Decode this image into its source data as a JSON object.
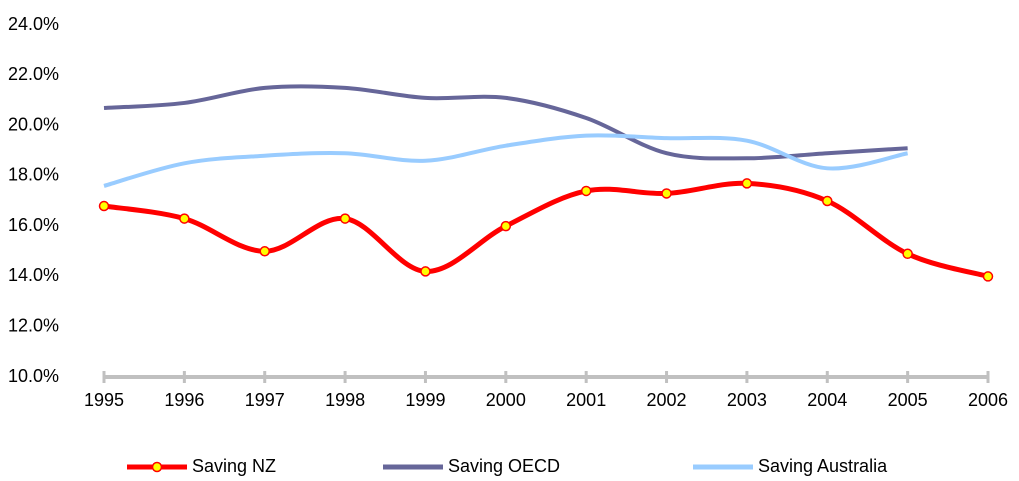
{
  "chart_data": {
    "type": "line",
    "categories": [
      "1995",
      "1996",
      "1997",
      "1998",
      "1999",
      "2000",
      "2001",
      "2002",
      "2003",
      "2004",
      "2005",
      "2006"
    ],
    "series": [
      {
        "name": "Saving NZ",
        "color": "#ff0000",
        "marker_color": "#ffff00",
        "markers": true,
        "values": [
          16.8,
          16.3,
          15.0,
          16.3,
          14.2,
          16.0,
          17.4,
          17.3,
          17.7,
          17.0,
          14.9,
          14.0
        ]
      },
      {
        "name": "Saving OECD",
        "color": "#666699",
        "markers": false,
        "values": [
          20.7,
          20.9,
          21.5,
          21.5,
          21.1,
          21.1,
          20.3,
          18.9,
          18.7,
          18.9,
          19.1,
          null
        ]
      },
      {
        "name": "Saving Australia",
        "color": "#99ccff",
        "markers": false,
        "values": [
          17.6,
          18.5,
          18.8,
          18.9,
          18.6,
          19.2,
          19.6,
          19.5,
          19.4,
          18.3,
          18.9,
          null
        ]
      }
    ],
    "ylim": [
      10,
      24
    ],
    "yticks": [
      {
        "value": 10,
        "label": "10.0%"
      },
      {
        "value": 12,
        "label": "12.0%"
      },
      {
        "value": 14,
        "label": "14.0%"
      },
      {
        "value": 16,
        "label": "16.0%"
      },
      {
        "value": 18,
        "label": "18.0%"
      },
      {
        "value": 20,
        "label": "20.0%"
      },
      {
        "value": 22,
        "label": "22.0%"
      },
      {
        "value": 24,
        "label": "24.0%"
      }
    ],
    "grid": false,
    "legend": "bottom",
    "axis_color": "#c0c0c0"
  }
}
